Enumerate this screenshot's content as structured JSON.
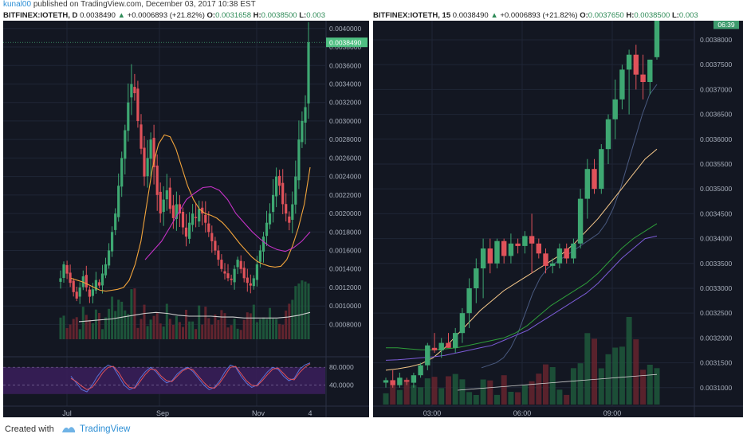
{
  "top_bar": {
    "author": "kunal00",
    "published": "published on TradingView.com, December 03, 2017 10:38 EST"
  },
  "footer": {
    "created": "Created with",
    "brand": "TradingView"
  },
  "colors": {
    "bg": "#131722",
    "up": "#3ea872",
    "down": "#e0525a",
    "grid": "#1f2636",
    "axis_text": "#a9b0bd",
    "last_price_tag": "#4fbf82",
    "stoch_fill": "#3b1f5c"
  },
  "left": {
    "header": {
      "symbol": "BITFINEX:IOTETH, D",
      "last": "0.0038490",
      "arrow": "▲",
      "change": "+0.0006893 (+21.82%)",
      "o_label": "O:",
      "o": "0.0031658",
      "h_label": "H:",
      "h": "0.0038500",
      "l_label": "L:",
      "l": "0.003"
    },
    "price_tag": "0.0038490",
    "x_labels": [
      "Jul",
      "Sep",
      "Nov",
      "4"
    ],
    "stoch_labels": [
      "80.0000",
      "40.0000"
    ],
    "stoch_levels": [
      80,
      40
    ]
  },
  "right": {
    "header": {
      "symbol": "BITFINEX:IOTETH, 15",
      "last": "0.0038490",
      "arrow": "▲",
      "change": "+0.0006893 (+21.82%)",
      "o_label": "O:",
      "o": "0.0037650",
      "h_label": "H:",
      "h": "0.0038500",
      "l_label": "L:",
      "l": "0.003"
    },
    "price_tag": "0.0038490",
    "countdown": "06:39",
    "x_labels": [
      "03:00",
      "06:00",
      "09:00"
    ]
  },
  "chart_data": [
    {
      "type": "candlestick",
      "title": "BITFINEX:IOTETH, D",
      "x_labels": [
        "Jul",
        "Sep",
        "Nov",
        "4"
      ],
      "y_ticks": [
        0.004,
        0.0038,
        0.0036,
        0.0034,
        0.0032,
        0.003,
        0.0028,
        0.0026,
        0.0024,
        0.0022,
        0.002,
        0.0018,
        0.0016,
        0.0014,
        0.0012,
        0.001,
        0.0008
      ],
      "ylim": [
        0.00064,
        0.00405
      ],
      "closes": [
        0.0013,
        0.00145,
        0.00135,
        0.00125,
        0.00115,
        0.00108,
        0.0012,
        0.00132,
        0.0012,
        0.0011,
        0.00118,
        0.00128,
        0.00122,
        0.00135,
        0.00145,
        0.0016,
        0.0018,
        0.002,
        0.0023,
        0.0026,
        0.0029,
        0.0032,
        0.0034,
        0.0033,
        0.003,
        0.0027,
        0.0024,
        0.0026,
        0.0028,
        0.0025,
        0.0022,
        0.002,
        0.00215,
        0.00225,
        0.00205,
        0.00195,
        0.0021,
        0.002,
        0.00185,
        0.00175,
        0.0019,
        0.002,
        0.00195,
        0.00205,
        0.002,
        0.0019,
        0.0018,
        0.0017,
        0.0016,
        0.0015,
        0.0014,
        0.00135,
        0.0013,
        0.00128,
        0.0014,
        0.0015,
        0.0014,
        0.0013,
        0.00125,
        0.00122,
        0.0013,
        0.00145,
        0.0016,
        0.00175,
        0.0019,
        0.002,
        0.0022,
        0.0024,
        0.0023,
        0.0021,
        0.002,
        0.0019,
        0.0021,
        0.0024,
        0.0028,
        0.003,
        0.00315,
        0.00385
      ],
      "series": [
        {
          "name": "MA fast",
          "color": "#f2a43c",
          "values": [
            0.0013,
            0.00128,
            0.00126,
            0.00123,
            0.0012,
            0.00117,
            0.00116,
            0.00117,
            0.00118,
            0.0012,
            0.00128,
            0.00145,
            0.0017,
            0.0021,
            0.0025,
            0.00275,
            0.00285,
            0.00283,
            0.0027,
            0.0025,
            0.0023,
            0.00215,
            0.00205,
            0.002,
            0.00198,
            0.00195,
            0.0019,
            0.00183,
            0.00175,
            0.00167,
            0.0016,
            0.00153,
            0.00148,
            0.00145,
            0.00143,
            0.00142,
            0.00143,
            0.0015,
            0.00165,
            0.00185,
            0.0021,
            0.0025
          ]
        },
        {
          "name": "MA slow",
          "color": "#c432c6",
          "values": [
            0.0015,
            0.0016,
            0.0017,
            0.00185,
            0.002,
            0.00215,
            0.00222,
            0.00228,
            0.00229,
            0.00225,
            0.00215,
            0.002,
            0.0019,
            0.0018,
            0.00172,
            0.00165,
            0.00161,
            0.00159,
            0.00163,
            0.0017,
            0.0018
          ]
        },
        {
          "name": "Vol MA",
          "color": "#cfcfcf",
          "values": [
            0.00083,
            0.00084,
            0.00085,
            0.00086,
            0.00088,
            0.0009,
            0.00092,
            0.00093,
            0.00092,
            0.0009,
            0.00089,
            0.00089,
            0.00089,
            0.00088,
            0.00088,
            0.00087,
            0.00087,
            0.00087,
            0.00087,
            0.00088,
            0.0009,
            0.00093
          ]
        }
      ]
    },
    {
      "type": "stochastic",
      "y_ticks": [
        80,
        40
      ],
      "series": [
        {
          "name": "%K",
          "color": "#5a72d8",
          "values": [
            60,
            45,
            30,
            25,
            40,
            60,
            75,
            85,
            80,
            60,
            40,
            30,
            35,
            55,
            70,
            80,
            70,
            55,
            45,
            50,
            65,
            75,
            80,
            70,
            55,
            40,
            30,
            35,
            50,
            70,
            85,
            80,
            60,
            45,
            35,
            40,
            55,
            70,
            80,
            75,
            60,
            50,
            55,
            75,
            85,
            90
          ]
        },
        {
          "name": "%D",
          "color": "#e0525a",
          "values": [
            55,
            48,
            38,
            30,
            35,
            50,
            68,
            80,
            82,
            68,
            48,
            35,
            33,
            48,
            64,
            76,
            74,
            60,
            50,
            48,
            60,
            72,
            78,
            74,
            60,
            46,
            35,
            33,
            45,
            62,
            80,
            82,
            66,
            50,
            40,
            38,
            50,
            64,
            76,
            78,
            66,
            54,
            52,
            68,
            80,
            88
          ]
        }
      ]
    },
    {
      "type": "candlestick",
      "title": "BITFINEX:IOTETH, 15",
      "x_labels": [
        "03:00",
        "06:00",
        "09:00"
      ],
      "y_ticks": [
        0.0038,
        0.00375,
        0.0037,
        0.00365,
        0.0036,
        0.00355,
        0.0035,
        0.00345,
        0.0034,
        0.00335,
        0.0033,
        0.00325,
        0.0032,
        0.00315,
        0.0031
      ],
      "ylim": [
        0.003082,
        0.003832
      ],
      "candles": [
        {
          "o": 0.00311,
          "h": 0.00312,
          "l": 0.0031,
          "c": 0.003115
        },
        {
          "o": 0.003115,
          "h": 0.003135,
          "l": 0.0031,
          "c": 0.003105
        },
        {
          "o": 0.003105,
          "h": 0.00313,
          "l": 0.0031,
          "c": 0.00312
        },
        {
          "o": 0.003115,
          "h": 0.00312,
          "l": 0.003105,
          "c": 0.003112
        },
        {
          "o": 0.00311,
          "h": 0.00313,
          "l": 0.0031,
          "c": 0.003125
        },
        {
          "o": 0.003125,
          "h": 0.00315,
          "l": 0.00312,
          "c": 0.003145
        },
        {
          "o": 0.003145,
          "h": 0.00319,
          "l": 0.003135,
          "c": 0.003185
        },
        {
          "o": 0.00318,
          "h": 0.00321,
          "l": 0.00317,
          "c": 0.003175
        },
        {
          "o": 0.003175,
          "h": 0.0032,
          "l": 0.00316,
          "c": 0.00319
        },
        {
          "o": 0.00319,
          "h": 0.00321,
          "l": 0.00318,
          "c": 0.00318
        },
        {
          "o": 0.00318,
          "h": 0.00322,
          "l": 0.00317,
          "c": 0.00321
        },
        {
          "o": 0.00321,
          "h": 0.00326,
          "l": 0.00319,
          "c": 0.00325
        },
        {
          "o": 0.00325,
          "h": 0.00332,
          "l": 0.00322,
          "c": 0.0033
        },
        {
          "o": 0.0033,
          "h": 0.00336,
          "l": 0.00327,
          "c": 0.00334
        },
        {
          "o": 0.00334,
          "h": 0.0034,
          "l": 0.00328,
          "c": 0.00338
        },
        {
          "o": 0.00338,
          "h": 0.0034,
          "l": 0.00333,
          "c": 0.00335
        },
        {
          "o": 0.00335,
          "h": 0.0034,
          "l": 0.00334,
          "c": 0.003395
        },
        {
          "o": 0.003395,
          "h": 0.0034,
          "l": 0.00335,
          "c": 0.003365
        },
        {
          "o": 0.003365,
          "h": 0.00341,
          "l": 0.00335,
          "c": 0.00339
        },
        {
          "o": 0.00339,
          "h": 0.0034,
          "l": 0.00337,
          "c": 0.003385
        },
        {
          "o": 0.003385,
          "h": 0.003415,
          "l": 0.00337,
          "c": 0.003405
        },
        {
          "o": 0.003405,
          "h": 0.00345,
          "l": 0.00333,
          "c": 0.00339
        },
        {
          "o": 0.00339,
          "h": 0.0034,
          "l": 0.00336,
          "c": 0.00337
        },
        {
          "o": 0.00337,
          "h": 0.00338,
          "l": 0.00333,
          "c": 0.003345
        },
        {
          "o": 0.003345,
          "h": 0.00336,
          "l": 0.00333,
          "c": 0.00335
        },
        {
          "o": 0.00335,
          "h": 0.00339,
          "l": 0.00334,
          "c": 0.00338
        },
        {
          "o": 0.00338,
          "h": 0.00339,
          "l": 0.00335,
          "c": 0.00336
        },
        {
          "o": 0.00336,
          "h": 0.0034,
          "l": 0.00335,
          "c": 0.00339
        },
        {
          "o": 0.00339,
          "h": 0.0035,
          "l": 0.00338,
          "c": 0.00348
        },
        {
          "o": 0.00348,
          "h": 0.00356,
          "l": 0.00344,
          "c": 0.00354
        },
        {
          "o": 0.00354,
          "h": 0.00356,
          "l": 0.00349,
          "c": 0.0035
        },
        {
          "o": 0.0035,
          "h": 0.00359,
          "l": 0.00349,
          "c": 0.00358
        },
        {
          "o": 0.00358,
          "h": 0.00365,
          "l": 0.00355,
          "c": 0.00364
        },
        {
          "o": 0.00364,
          "h": 0.00372,
          "l": 0.0036,
          "c": 0.00368
        },
        {
          "o": 0.00368,
          "h": 0.00375,
          "l": 0.00366,
          "c": 0.00374
        },
        {
          "o": 0.00374,
          "h": 0.00378,
          "l": 0.00365,
          "c": 0.00377
        },
        {
          "o": 0.00377,
          "h": 0.00379,
          "l": 0.0037,
          "c": 0.00373
        },
        {
          "o": 0.00373,
          "h": 0.00377,
          "l": 0.00368,
          "c": 0.003715
        },
        {
          "o": 0.003715,
          "h": 0.00376,
          "l": 0.00369,
          "c": 0.00376
        },
        {
          "o": 0.003765,
          "h": 0.00385,
          "l": 0.00376,
          "c": 0.003849
        }
      ],
      "series": [
        {
          "name": "MA 1",
          "color": "#4a5a80",
          "values": [
            0.00314,
            0.003145,
            0.00315,
            0.00316,
            0.00318,
            0.00321,
            0.00325,
            0.00329,
            0.00332,
            0.00334,
            0.00335,
            0.00336,
            0.00337,
            0.00338,
            0.00339,
            0.0034,
            0.00341,
            0.00343,
            0.00346,
            0.0035,
            0.00355,
            0.0036,
            0.00365,
            0.00369,
            0.00371
          ]
        },
        {
          "name": "MA 2",
          "color": "#f7c98b",
          "values": [
            0.003135,
            0.003138,
            0.003142,
            0.003148,
            0.00316,
            0.00318,
            0.003205,
            0.00323,
            0.003255,
            0.003275,
            0.003295,
            0.00331,
            0.003325,
            0.00334,
            0.003355,
            0.00337,
            0.00339,
            0.003415,
            0.00344,
            0.00347,
            0.0035,
            0.00353,
            0.00356,
            0.00358
          ]
        },
        {
          "name": "MA 3",
          "color": "#2e9e3a",
          "values": [
            0.00318,
            0.00318,
            0.003178,
            0.003176,
            0.003176,
            0.003178,
            0.00318,
            0.003185,
            0.00319,
            0.003195,
            0.0032,
            0.00321,
            0.003225,
            0.003245,
            0.003265,
            0.00328,
            0.003295,
            0.00331,
            0.00333,
            0.003355,
            0.00338,
            0.0034,
            0.003415,
            0.00343
          ]
        },
        {
          "name": "MA 4",
          "color": "#7b5bd6",
          "values": [
            0.003155,
            0.003156,
            0.003158,
            0.00316,
            0.003162,
            0.003165,
            0.00317,
            0.003175,
            0.00318,
            0.003185,
            0.003195,
            0.003205,
            0.003215,
            0.00323,
            0.003245,
            0.00326,
            0.003275,
            0.00329,
            0.00331,
            0.003335,
            0.00336,
            0.00338,
            0.0034,
            0.003405
          ]
        }
      ]
    }
  ]
}
